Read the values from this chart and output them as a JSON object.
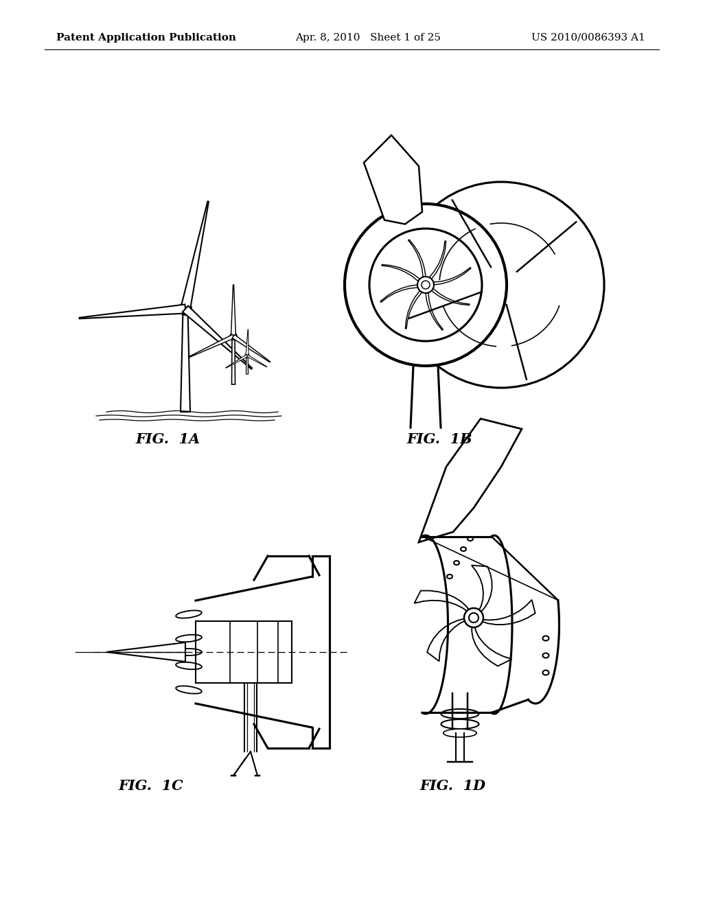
{
  "background_color": "#ffffff",
  "header_left": "Patent Application Publication",
  "header_center": "Apr. 8, 2010   Sheet 1 of 25",
  "header_right": "US 2010/0086393 A1",
  "fig_labels": [
    "FIG.  1A",
    "FIG.  1B",
    "FIG.  1C",
    "FIG.  1D"
  ],
  "fig_label_fontsize": 15,
  "header_fontsize": 11,
  "line_color": "#000000"
}
